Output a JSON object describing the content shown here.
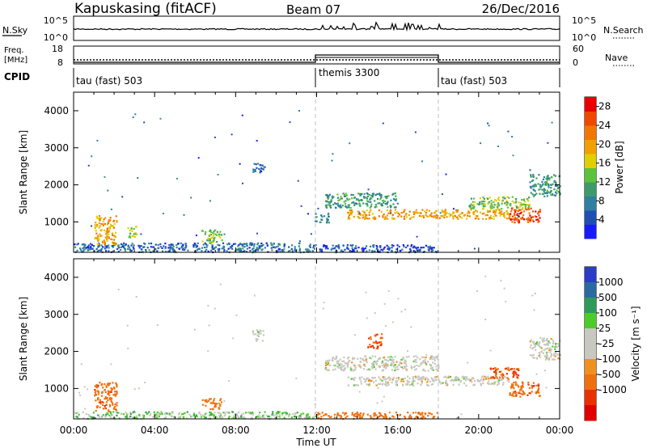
{
  "header": {
    "station": "Kapuskasing (fitACF)",
    "beam": "Beam 07",
    "date": "26/Dec/2016"
  },
  "noise_panel": {
    "left_label": "N.Sky",
    "right_label": "N.Search",
    "left_ticks": [
      "10^5",
      "10^0"
    ],
    "right_ticks": [
      "10^5",
      "10^0"
    ]
  },
  "freq_panel": {
    "left_label_line1": "Freq.",
    "left_label_line2": "[MHz]",
    "left_ticks": [
      "18",
      "8"
    ],
    "right_ticks": [
      "60",
      "0"
    ],
    "right_label": "Nave"
  },
  "cpid": {
    "label": "CPID",
    "segments": [
      {
        "name": "tau (fast) 503",
        "start_hour": 0,
        "end_hour": 12
      },
      {
        "name": "themis 3300",
        "start_hour": 12,
        "end_hour": 18
      },
      {
        "name": "tau (fast) 503",
        "start_hour": 18,
        "end_hour": 24
      }
    ]
  },
  "colors": {
    "power_scale": [
      "#1a1aff",
      "#1e50b4",
      "#2e7fa0",
      "#3d9a6a",
      "#5cc23c",
      "#e0d000",
      "#f0a000",
      "#f07800",
      "#f04800",
      "#e80000"
    ],
    "velocity_scale": [
      "#2a3cc8",
      "#2a6aa0",
      "#2e9a5a",
      "#4ccc2a",
      "#c8c8c0",
      "#c8c8c0",
      "#f09020",
      "#f07010",
      "#e83000",
      "#e00000"
    ],
    "dashed_lines": "#c0c0c0"
  },
  "chart_data": [
    {
      "type": "heatmap",
      "name": "Power",
      "ylabel": "Slant Range [km]",
      "yticks": [
        1000,
        2000,
        3000,
        4000
      ],
      "ylim": [
        180,
        4500
      ],
      "colorbar_label": "Power [dB]",
      "colorbar_ticks": [
        "4",
        "8",
        "12",
        "16",
        "20",
        "24",
        "28"
      ],
      "colorbar_range": [
        0,
        30
      ],
      "echo_regions": [
        {
          "t_start": 0.0,
          "t_end": 12.0,
          "r_start": 200,
          "r_end": 450,
          "level": 6
        },
        {
          "t_start": 12.0,
          "t_end": 18.0,
          "r_start": 200,
          "r_end": 400,
          "level": 4
        },
        {
          "t_start": 1.0,
          "t_end": 2.1,
          "r_start": 400,
          "r_end": 1200,
          "level": 20
        },
        {
          "t_start": 2.6,
          "t_end": 3.1,
          "r_start": 600,
          "r_end": 900,
          "level": 14
        },
        {
          "t_start": 6.3,
          "t_end": 7.3,
          "r_start": 450,
          "r_end": 800,
          "level": 14
        },
        {
          "t_start": 8.8,
          "t_end": 9.4,
          "r_start": 2300,
          "r_end": 2600,
          "level": 6
        },
        {
          "t_start": 11.9,
          "t_end": 12.6,
          "r_start": 1000,
          "r_end": 1250,
          "level": 8
        },
        {
          "t_start": 12.4,
          "t_end": 16.0,
          "r_start": 1400,
          "r_end": 1800,
          "level": 10
        },
        {
          "t_start": 13.5,
          "t_end": 21.5,
          "r_start": 1100,
          "r_end": 1350,
          "level": 20
        },
        {
          "t_start": 19.5,
          "t_end": 22.5,
          "r_start": 1350,
          "r_end": 1700,
          "level": 14
        },
        {
          "t_start": 21.5,
          "t_end": 23.0,
          "r_start": 1000,
          "r_end": 1400,
          "level": 25
        },
        {
          "t_start": 22.5,
          "t_end": 24.0,
          "r_start": 1700,
          "r_end": 2300,
          "level": 10
        }
      ]
    },
    {
      "type": "heatmap",
      "name": "Velocity",
      "xlabel": "Time UT",
      "xticks": [
        "00:00",
        "04:00",
        "08:00",
        "12:00",
        "16:00",
        "20:00",
        "00:00"
      ],
      "xlim": [
        0,
        24
      ],
      "ylabel": "Slant Range [km]",
      "yticks": [
        1000,
        2000,
        3000,
        4000
      ],
      "ylim": [
        180,
        4500
      ],
      "colorbar_label": "Velocity [m s⁻¹]",
      "colorbar_ticks": [
        "1000",
        "500",
        "100",
        "25",
        "-25",
        "-100",
        "-500",
        "-1000"
      ],
      "echo_regions": [
        {
          "t_start": 0.0,
          "t_end": 12.0,
          "r_start": 200,
          "r_end": 400,
          "level": 30
        },
        {
          "t_start": 12.0,
          "t_end": 18.0,
          "r_start": 200,
          "r_end": 380,
          "level": -150
        },
        {
          "t_start": 1.0,
          "t_end": 2.1,
          "r_start": 400,
          "r_end": 1200,
          "level": -200
        },
        {
          "t_start": 6.3,
          "t_end": 7.3,
          "r_start": 450,
          "r_end": 750,
          "level": -150
        },
        {
          "t_start": 8.8,
          "t_end": 9.4,
          "r_start": 2300,
          "r_end": 2600,
          "level": 0
        },
        {
          "t_start": 12.4,
          "t_end": 18.0,
          "r_start": 1500,
          "r_end": 1900,
          "level": 0
        },
        {
          "t_start": 13.5,
          "t_end": 21.5,
          "r_start": 1100,
          "r_end": 1350,
          "level": 0
        },
        {
          "t_start": 14.5,
          "t_end": 15.2,
          "r_start": 2100,
          "r_end": 2500,
          "level": -300
        },
        {
          "t_start": 20.5,
          "t_end": 22.0,
          "r_start": 1300,
          "r_end": 1600,
          "level": -300
        },
        {
          "t_start": 21.5,
          "t_end": 23.0,
          "r_start": 800,
          "r_end": 1200,
          "level": -200
        },
        {
          "t_start": 22.5,
          "t_end": 24.0,
          "r_start": 1800,
          "r_end": 2400,
          "level": 0
        }
      ]
    }
  ]
}
